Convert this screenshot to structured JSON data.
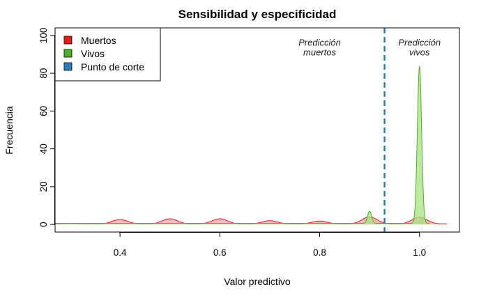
{
  "chart_data": {
    "type": "area",
    "title": "Sensibilidad y especificidad",
    "xlabel": "Valor predictivo",
    "ylabel": "Frecuencia",
    "xlim": [
      0.27,
      1.08
    ],
    "ylim": [
      -4,
      104
    ],
    "xticks": [
      0.4,
      0.6,
      0.8,
      1.0
    ],
    "xtick_labels": [
      "0.4",
      "0.6",
      "0.8",
      "1.0"
    ],
    "yticks": [
      0,
      20,
      40,
      60,
      80,
      100
    ],
    "ytick_labels": [
      "0",
      "20",
      "40",
      "60",
      "80",
      "100"
    ],
    "grid": false,
    "legend_position": "top-left",
    "series": [
      {
        "name": "Muertos",
        "color": "#e41a1c",
        "fill": "#f4a6a6",
        "range": [
          0.27,
          1.055
        ],
        "baseline": 0.3,
        "peaks": [
          [
            0.3,
            0.6,
            0.015
          ],
          [
            0.4,
            2.6,
            0.015
          ],
          [
            0.5,
            3.0,
            0.015
          ],
          [
            0.6,
            3.0,
            0.015
          ],
          [
            0.7,
            2.0,
            0.015
          ],
          [
            0.8,
            1.8,
            0.015
          ],
          [
            0.9,
            4.0,
            0.015
          ],
          [
            1.0,
            3.8,
            0.015
          ]
        ]
      },
      {
        "name": "Vivos",
        "color": "#4daf2a",
        "fill": "#a6e37f",
        "range": [
          0.27,
          1.02
        ],
        "baseline": 0.6,
        "peaks": [
          [
            0.9,
            7.0,
            0.004
          ],
          [
            1.0,
            84.0,
            0.0042
          ]
        ]
      }
    ],
    "cutoff": {
      "name": "Punto de corte",
      "x": 0.93,
      "color": "#2b7fb8"
    },
    "annotations": [
      {
        "lines": [
          "Predicción",
          "muertos"
        ],
        "x": 0.8,
        "y": [
          96,
          91
        ]
      },
      {
        "lines": [
          "Predicción",
          "vivos"
        ],
        "x": 1.0,
        "y": [
          96,
          91
        ]
      }
    ]
  },
  "legend": {
    "items": [
      {
        "label": "Muertos",
        "color": "#e41a1c"
      },
      {
        "label": "Vivos",
        "color": "#4daf2a"
      },
      {
        "label": "Punto de corte",
        "color": "#2b7fb8"
      }
    ]
  }
}
